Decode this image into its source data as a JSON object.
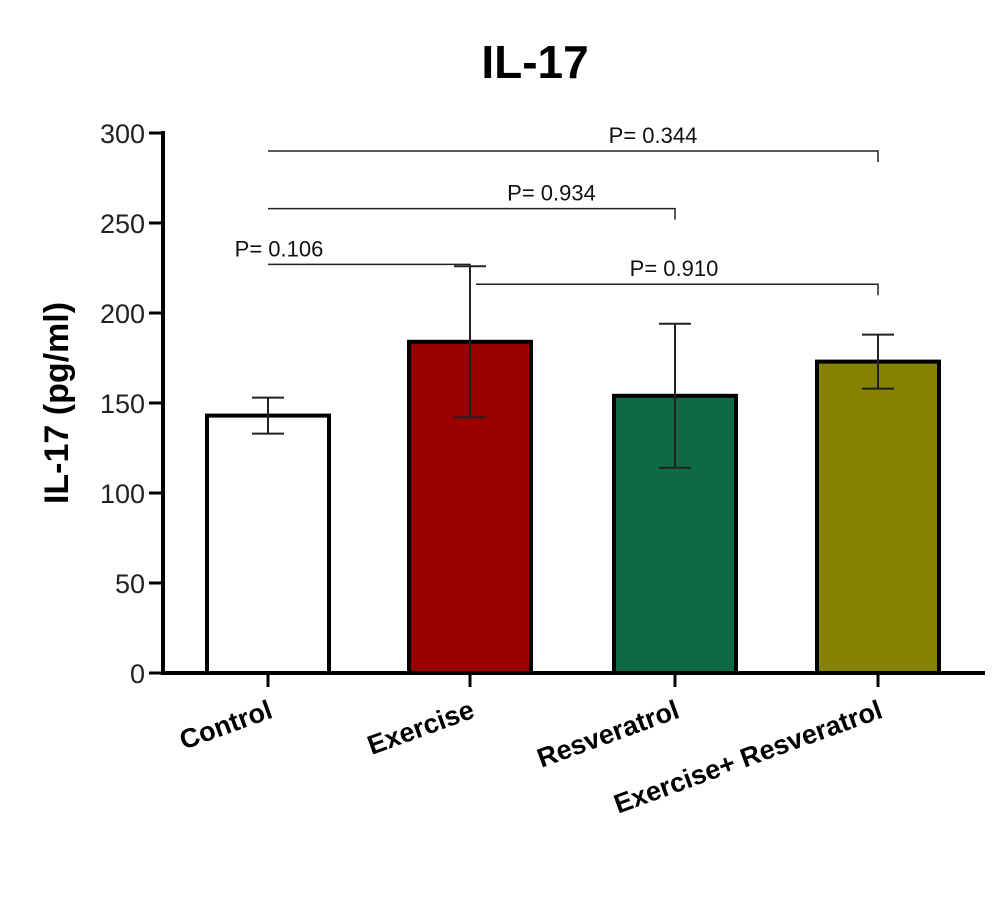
{
  "chart_data": {
    "type": "bar",
    "title": "IL-17",
    "ylabel": "IL-17  (pg/ml)",
    "xlabel": "",
    "ylim": [
      0,
      300
    ],
    "yticks": [
      0,
      50,
      100,
      150,
      200,
      250,
      300
    ],
    "categories": [
      "Control",
      "Exercise",
      "Resveratrol",
      "Exercise+ Resveratrol"
    ],
    "values": [
      143,
      184,
      154,
      173
    ],
    "errors": [
      10,
      42,
      40,
      15
    ],
    "bar_colors": [
      "#ffffff",
      "#9b0000",
      "#0d6a45",
      "#858200"
    ],
    "grid": false,
    "comparisons": [
      {
        "from": 0,
        "to": 3,
        "label": "P= 0.344",
        "y": 290
      },
      {
        "from": 0,
        "to": 2,
        "label": "P= 0.934",
        "y": 258
      },
      {
        "from": 0,
        "to": 1,
        "label": "P= 0.106",
        "y": 227
      },
      {
        "from": 1,
        "to": 3,
        "label": "P= 0.910",
        "y": 216
      }
    ]
  }
}
